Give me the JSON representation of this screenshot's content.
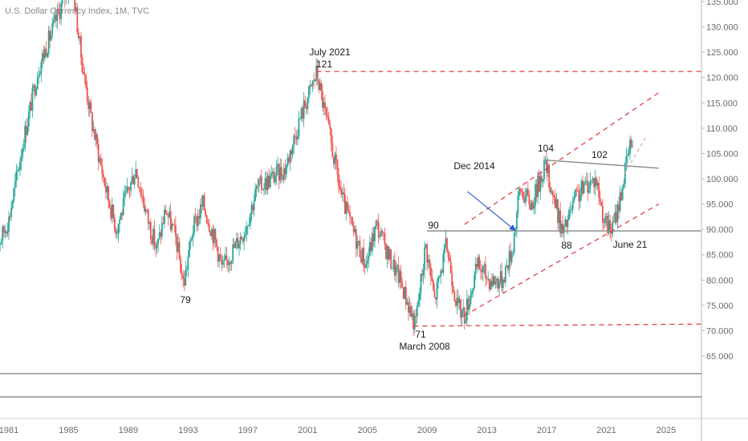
{
  "chart_data": {
    "type": "candlestick",
    "title": "U.S. Dollar Currency Index, 1M, TVC",
    "ylim": [
      60,
      136
    ],
    "xlim": [
      1980.0,
      2027.5
    ],
    "y_ticks": [
      "135.000",
      "130.000",
      "125.000",
      "120.000",
      "115.000",
      "110.000",
      "105.000",
      "100.000",
      "95.000",
      "90.000",
      "85.000",
      "80.000",
      "75.000",
      "70.000",
      "65.000"
    ],
    "y_tick_values": [
      135,
      130,
      125,
      120,
      115,
      110,
      105,
      100,
      95,
      90,
      85,
      80,
      75,
      70,
      65
    ],
    "x_ticks": [
      "1981",
      "1985",
      "1989",
      "1993",
      "1997",
      "2001",
      "2005",
      "2009",
      "2013",
      "2017",
      "2021",
      "2025"
    ],
    "x_tick_values": [
      1981,
      1985,
      1989,
      1993,
      1997,
      2001,
      2005,
      2009,
      2013,
      2017,
      2021,
      2025
    ],
    "up_color": "#26a69a",
    "down_color": "#ef5350",
    "price_path": [
      [
        1980.0,
        85
      ],
      [
        1981.0,
        92
      ],
      [
        1982.0,
        108
      ],
      [
        1983.0,
        122
      ],
      [
        1984.0,
        130
      ],
      [
        1985.2,
        140
      ],
      [
        1985.8,
        125
      ],
      [
        1986.5,
        112
      ],
      [
        1987.5,
        98
      ],
      [
        1988.2,
        90
      ],
      [
        1988.8,
        96
      ],
      [
        1989.5,
        102
      ],
      [
        1990.3,
        92
      ],
      [
        1990.9,
        86
      ],
      [
        1991.5,
        94
      ],
      [
        1992.2,
        88
      ],
      [
        1992.7,
        79
      ],
      [
        1993.3,
        90
      ],
      [
        1994.0,
        95
      ],
      [
        1994.8,
        88
      ],
      [
        1995.3,
        82
      ],
      [
        1996.0,
        86
      ],
      [
        1996.8,
        90
      ],
      [
        1997.6,
        98
      ],
      [
        1998.5,
        100
      ],
      [
        1999.5,
        102
      ],
      [
        2000.5,
        112
      ],
      [
        2001.6,
        121
      ],
      [
        2002.5,
        108
      ],
      [
        2003.3,
        96
      ],
      [
        2004.0,
        90
      ],
      [
        2004.9,
        83
      ],
      [
        2005.6,
        91
      ],
      [
        2006.4,
        85
      ],
      [
        2007.2,
        80
      ],
      [
        2008.2,
        71
      ],
      [
        2008.9,
        87
      ],
      [
        2009.5,
        76
      ],
      [
        2010.3,
        87
      ],
      [
        2011.0,
        75
      ],
      [
        2011.5,
        73
      ],
      [
        2012.4,
        83
      ],
      [
        2013.2,
        80
      ],
      [
        2014.0,
        80
      ],
      [
        2014.7,
        86
      ],
      [
        2015.2,
        98
      ],
      [
        2016.0,
        95
      ],
      [
        2016.9,
        103
      ],
      [
        2017.5,
        96
      ],
      [
        2018.1,
        89
      ],
      [
        2018.9,
        96
      ],
      [
        2019.7,
        99
      ],
      [
        2020.3,
        100
      ],
      [
        2020.9,
        91
      ],
      [
        2021.4,
        90
      ],
      [
        2021.9,
        96
      ],
      [
        2022.4,
        104
      ],
      [
        2022.8,
        109
      ]
    ],
    "annotations": {
      "label_121": "121",
      "label_july2021": "July 2021",
      "label_79": "79",
      "label_90": "90",
      "label_71": "71",
      "label_march2008": "March 2008",
      "label_dec2014": "Dec 2014",
      "label_104": "104",
      "label_102": "102",
      "label_88": "88",
      "label_june21": "June 21"
    },
    "reference_lines": [
      {
        "name": "top-horizontal",
        "style": "dashed-red",
        "from": [
          2001.6,
          121.2
        ],
        "to": [
          2027.5,
          121.2
        ]
      },
      {
        "name": "bottom-horizontal",
        "style": "dashed-red",
        "from": [
          2008.1,
          70.9
        ],
        "to": [
          2027.5,
          71.3
        ]
      },
      {
        "name": "support-90",
        "style": "solid-gray",
        "from": [
          2009.0,
          89.7
        ],
        "to": [
          2027.5,
          89.7
        ]
      },
      {
        "name": "neckline",
        "style": "solid-gray",
        "from": [
          2016.9,
          103.7
        ],
        "to": [
          2024.5,
          102.1
        ]
      },
      {
        "name": "channel-upper",
        "style": "dashed-red",
        "from": [
          2011.5,
          91.0
        ],
        "to": [
          2024.5,
          117.0
        ]
      },
      {
        "name": "channel-lower",
        "style": "dashed-red",
        "from": [
          2011.5,
          73.0
        ],
        "to": [
          2024.5,
          95.0
        ]
      },
      {
        "name": "trend-short",
        "style": "dashed-red-thin",
        "from": [
          2022.2,
          101.0
        ],
        "to": [
          2023.7,
          108.5
        ]
      }
    ],
    "arrows": [
      {
        "name": "dec2014-arrow",
        "from": [
          2011.7,
          97.5
        ],
        "to": [
          2014.9,
          89.8
        ]
      }
    ]
  }
}
